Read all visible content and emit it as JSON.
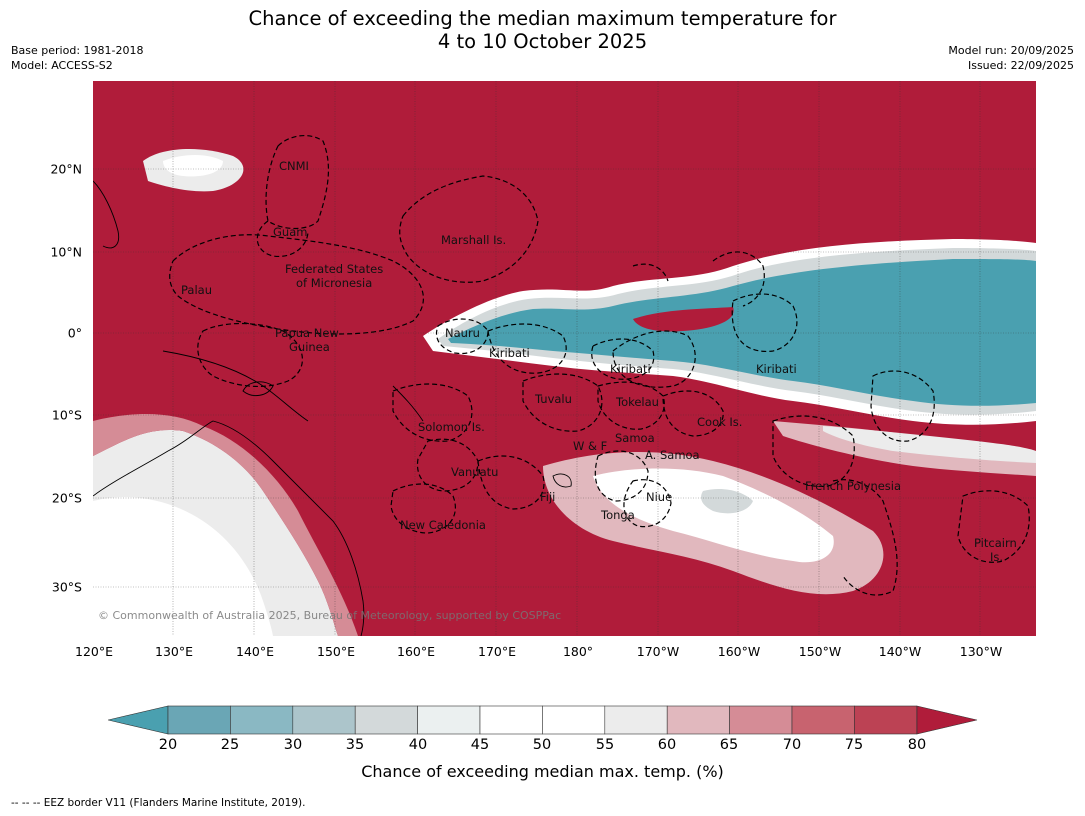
{
  "title": [
    "Chance of exceeding the median maximum temperature for",
    "4 to 10 October 2025"
  ],
  "meta_left": [
    "Base period: 1981-2018",
    "Model: ACCESS-S2"
  ],
  "meta_right": [
    "Model run: 20/09/2025",
    "Issued: 22/09/2025"
  ],
  "lon_ticks": [
    "120°E",
    "130°E",
    "140°E",
    "150°E",
    "160°E",
    "170°E",
    "180°",
    "170°W",
    "160°W",
    "150°W",
    "140°W",
    "130°W"
  ],
  "lat_ticks": [
    "20°N",
    "10°N",
    "0°",
    "10°S",
    "20°S",
    "30°S"
  ],
  "regions": [
    "CNMI",
    "Guam",
    "Marshall Is.",
    "Federated States",
    "of Micronesia",
    "Palau",
    "Nauru",
    "Papua New",
    "Guinea",
    "Kiribati",
    "Kiribati",
    "Kiribati",
    "Tuvalu",
    "Tokelau",
    "Cook Is.",
    "Solomon Is.",
    "Samoa",
    "W & F",
    "A. Samoa",
    "Vanuatu",
    "Fiji",
    "Niue",
    "Tonga",
    "French Polynesia",
    "New Caledonia",
    "Pitcairn",
    "Is."
  ],
  "colorbar": {
    "title": "Chance of exceeding median max. temp. (%)",
    "labels": [
      "20",
      "25",
      "30",
      "35",
      "40",
      "45",
      "50",
      "55",
      "60",
      "65",
      "70",
      "75",
      "80"
    ],
    "colors": [
      "#4aa0b0",
      "#6aa6b5",
      "#8ab8c3",
      "#acc5cb",
      "#d3d9da",
      "#ebf0f0",
      "#ffffff",
      "#ffffff",
      "#ececec",
      "#e1b8be",
      "#d58c96",
      "#c8636f",
      "#bc4254",
      "#b01c3a"
    ],
    "under_color": "#4aa0b0",
    "over_color": "#b01c3a"
  },
  "copyright": "© Commonwealth of Australia 2025, Bureau of Meteorology, supported by COSPPac",
  "footnote": "--  --  -- EEZ border V11 (Flanders Marine Institute, 2019)."
}
